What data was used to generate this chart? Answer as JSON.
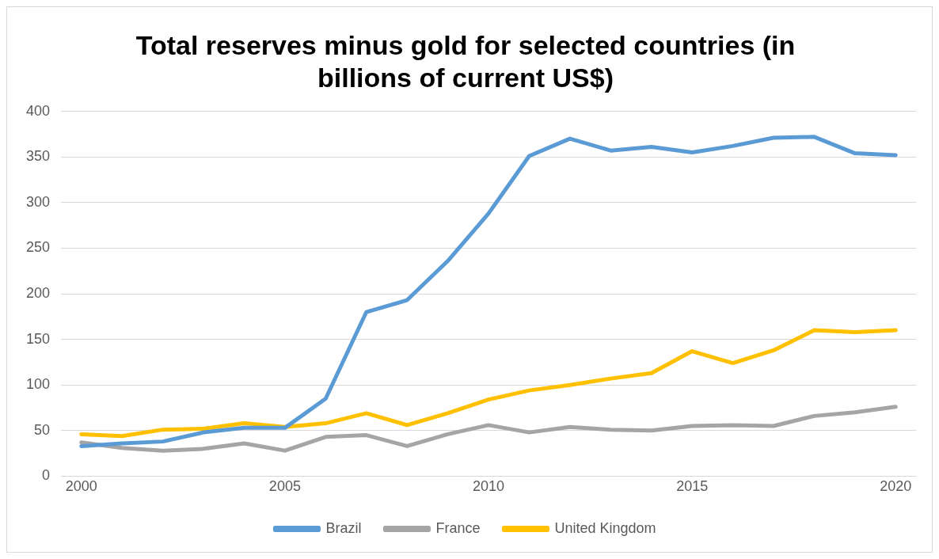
{
  "chart_data": {
    "type": "line",
    "title": "Total reserves minus gold for selected countries (in billions of current US$)",
    "x": [
      2000,
      2001,
      2002,
      2003,
      2004,
      2005,
      2006,
      2007,
      2008,
      2009,
      2010,
      2011,
      2012,
      2013,
      2014,
      2015,
      2016,
      2017,
      2018,
      2019,
      2020
    ],
    "series": [
      {
        "name": "Brazil",
        "color": "#5b9bd5",
        "values": [
          33,
          36,
          38,
          48,
          53,
          53,
          85,
          180,
          193,
          236,
          288,
          351,
          370,
          357,
          361,
          355,
          362,
          371,
          372,
          354,
          352
        ]
      },
      {
        "name": "France",
        "color": "#a5a5a5",
        "values": [
          37,
          31,
          28,
          30,
          36,
          28,
          43,
          45,
          33,
          46,
          56,
          48,
          54,
          51,
          50,
          55,
          56,
          55,
          66,
          70,
          76
        ]
      },
      {
        "name": "United Kingdom",
        "color": "#ffc000",
        "values": [
          46,
          44,
          51,
          52,
          58,
          54,
          58,
          69,
          56,
          69,
          84,
          94,
          100,
          107,
          113,
          137,
          124,
          138,
          160,
          158,
          160
        ]
      }
    ],
    "xlim": [
      1999.5,
      2020.5
    ],
    "xticks": [
      2000,
      2005,
      2010,
      2015,
      2020
    ],
    "ylim": [
      0,
      400
    ],
    "yticks": [
      0,
      50,
      100,
      150,
      200,
      250,
      300,
      350,
      400
    ],
    "grid": "y",
    "legend": "bottom",
    "marker": "none",
    "line_style": "solid"
  }
}
